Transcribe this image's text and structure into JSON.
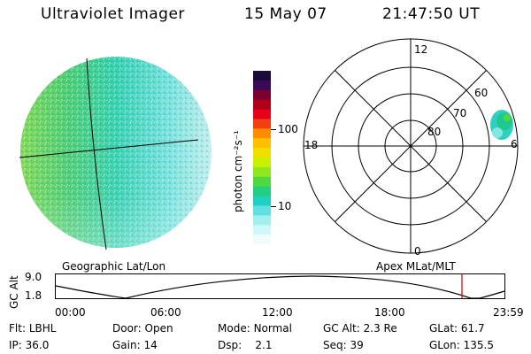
{
  "header": {
    "instrument": "Ultraviolet Imager",
    "date": "15 May 07",
    "time": "21:47:50 UT"
  },
  "globe_panel": {
    "caption": "Geographic Lat/Lon"
  },
  "colorbar": {
    "unit_label": "photon cm⁻²s⁻¹",
    "tick_100": "100",
    "tick_10": "10",
    "colors_top_to_bottom": [
      "#1a0a3a",
      "#3a0a5a",
      "#7a0030",
      "#b0001a",
      "#e6001a",
      "#f04010",
      "#ff8c00",
      "#ffc000",
      "#f0e000",
      "#c8f000",
      "#90e820",
      "#50d840",
      "#20d080",
      "#20d0c0",
      "#60e0e0",
      "#a0f0f0",
      "#d0f8f8",
      "#f0fcfc"
    ]
  },
  "polar_panel": {
    "caption": "Apex MLat/MLT",
    "mlt_labels": {
      "top": "12",
      "left": "18",
      "right": "6",
      "bottom": "0"
    },
    "mlat_labels": [
      "60",
      "70",
      "80"
    ]
  },
  "altitude_plot": {
    "ylabel": "GC Alt",
    "ytick_top": "9.0",
    "ytick_bottom": "1.8",
    "xticks": [
      "00:00",
      "06:00",
      "12:00",
      "18:00",
      "23:59"
    ],
    "accent_color": "#cc0000"
  },
  "status": {
    "row1": [
      {
        "label": "Flt:",
        "value": "LBHL"
      },
      {
        "label": "Door:",
        "value": "Open"
      },
      {
        "label": "Mode:",
        "value": "Normal"
      },
      {
        "label": "GC Alt:",
        "value": "2.3 Re"
      },
      {
        "label": "GLat:",
        "value": "61.7"
      }
    ],
    "row2": [
      {
        "label": "IP:",
        "value": "36.0"
      },
      {
        "label": "Gain:",
        "value": "14"
      },
      {
        "label": "Dsp:",
        "value": "2.1"
      },
      {
        "label": "Seq:",
        "value": "39"
      },
      {
        "label": "GLon:",
        "value": "135.5"
      }
    ]
  }
}
